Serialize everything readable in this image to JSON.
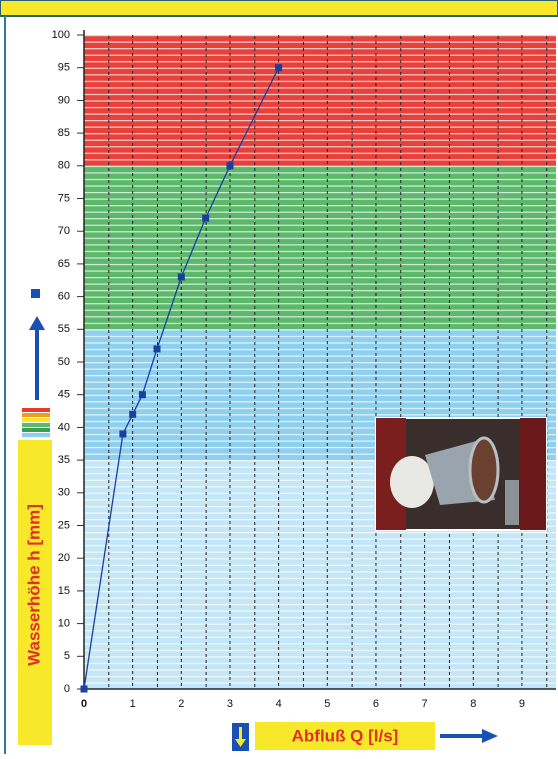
{
  "chart_data": {
    "type": "line",
    "y_label": "Wasserhöhe h [mm]",
    "x_label": "Abfluß Q [l/s]",
    "x": [
      0,
      0.8,
      1,
      1.2,
      1.5,
      2,
      2.5,
      3,
      4
    ],
    "series": [
      {
        "color": "#1a3f9e",
        "values": [
          0,
          39,
          42,
          45,
          52,
          63,
          72,
          80,
          95
        ]
      }
    ],
    "xlim": [
      0,
      9.7
    ],
    "ylim": [
      0,
      100
    ],
    "xticks": [
      0,
      1,
      2,
      3,
      4,
      5,
      6,
      7,
      8,
      9
    ],
    "yticks": [
      0,
      5,
      10,
      15,
      20,
      25,
      30,
      35,
      40,
      45,
      50,
      55,
      60,
      65,
      70,
      75,
      80,
      85,
      90,
      95,
      100
    ],
    "bands": [
      {
        "from": 0,
        "to": 35,
        "color": "#c4e6f6"
      },
      {
        "from": 35,
        "to": 55,
        "color": "#8fd0ef"
      },
      {
        "from": 55,
        "to": 80,
        "color": "#5cb86a"
      },
      {
        "from": 80,
        "to": 100,
        "color": "#e8413c"
      }
    ],
    "grid": true
  }
}
